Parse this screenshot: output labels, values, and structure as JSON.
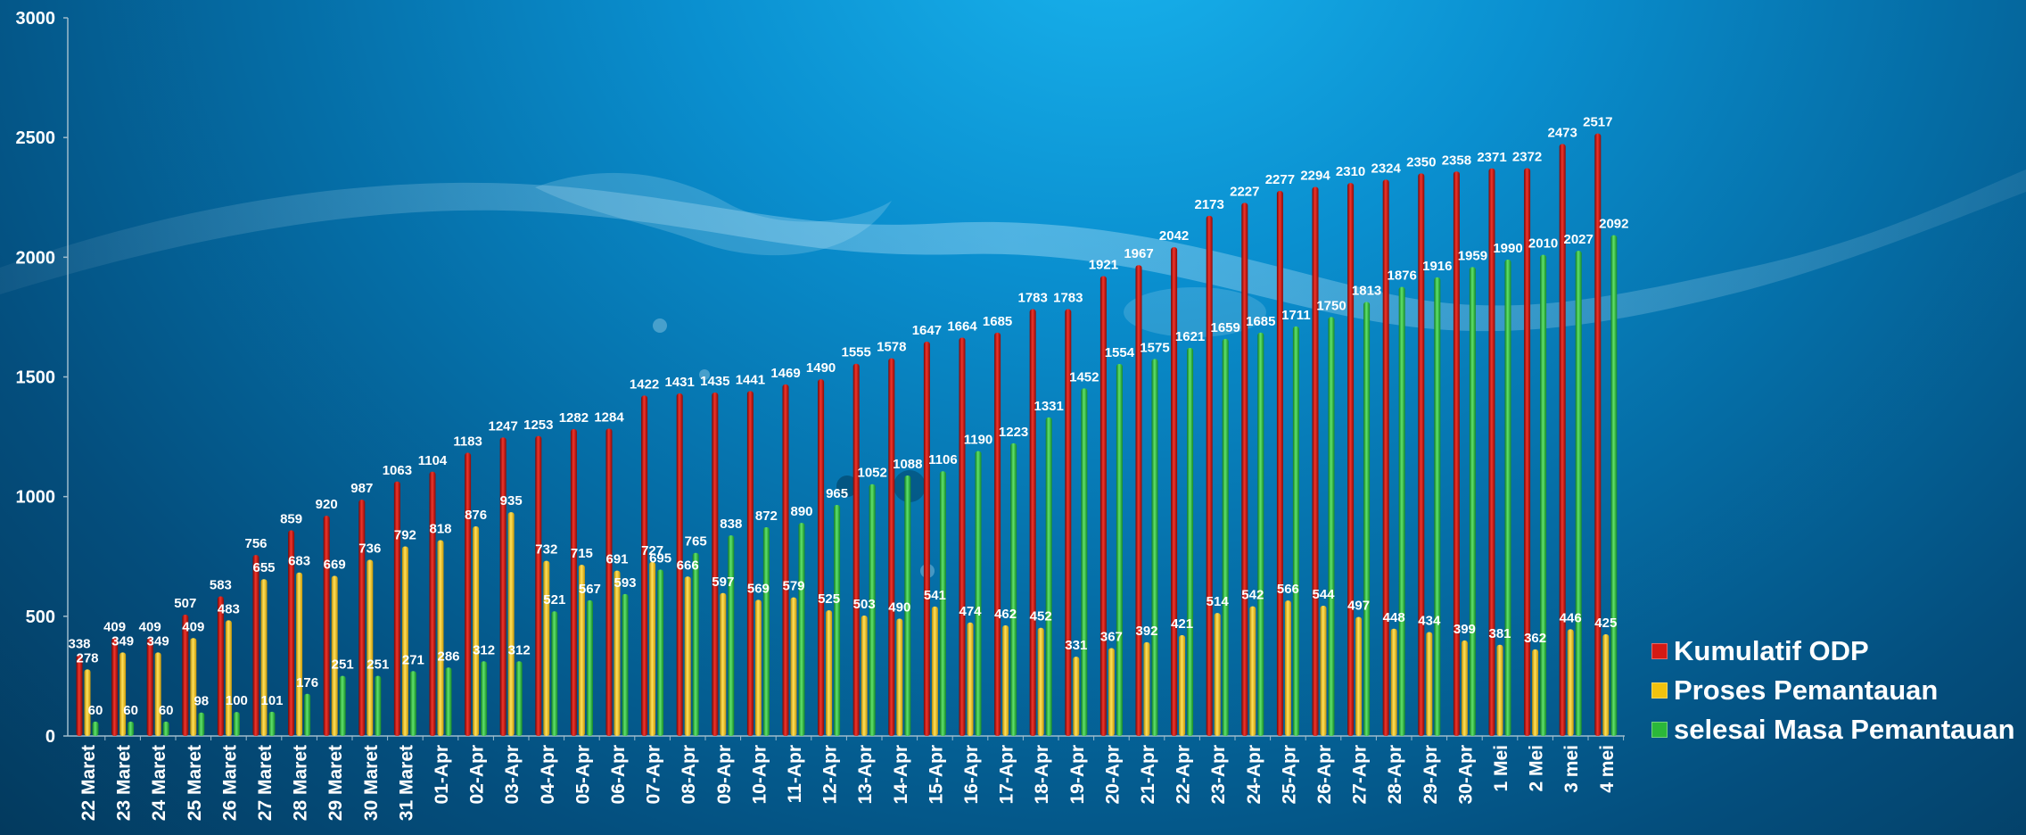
{
  "chart_data": {
    "type": "bar",
    "title": "",
    "xlabel": "",
    "ylabel": "",
    "ylim": [
      0,
      3000
    ],
    "yticks": [
      0,
      500,
      1000,
      1500,
      2000,
      2500,
      3000
    ],
    "grid": false,
    "legend_position": "right",
    "categories": [
      "22 Maret",
      "23 Maret",
      "24 Maret",
      "25 Maret",
      "26 Maret",
      "27 Maret",
      "28 Maret",
      "29 Maret",
      "30 Maret",
      "31 Maret",
      "01-Apr",
      "02-Apr",
      "03-Apr",
      "04-Apr",
      "05-Apr",
      "06-Apr",
      "07-Apr",
      "08-Apr",
      "09-Apr",
      "10-Apr",
      "11-Apr",
      "12-Apr",
      "13-Apr",
      "14-Apr",
      "15-Apr",
      "16-Apr",
      "17-Apr",
      "18-Apr",
      "19-Apr",
      "20-Apr",
      "21-Apr",
      "22-Apr",
      "23-Apr",
      "24-Apr",
      "25-Apr",
      "26-Apr",
      "27-Apr",
      "28-Apr",
      "29-Apr",
      "30-Apr",
      "1 Mei",
      "2 Mei",
      "3 mei",
      "4 mei"
    ],
    "series": [
      {
        "name": "Kumulatif ODP",
        "color": "#d41a14",
        "values": [
          338,
          409,
          409,
          507,
          583,
          756,
          859,
          920,
          987,
          1063,
          1104,
          1183,
          1247,
          1253,
          1282,
          1284,
          1422,
          1431,
          1435,
          1441,
          1469,
          1490,
          1555,
          1578,
          1647,
          1664,
          1685,
          1783,
          1783,
          1921,
          1967,
          2042,
          2173,
          2227,
          2277,
          2294,
          2310,
          2324,
          2350,
          2358,
          2371,
          2372,
          2473,
          2517
        ]
      },
      {
        "name": "Proses Pemantauan",
        "color": "#f2c20e",
        "values": [
          278,
          349,
          349,
          409,
          483,
          655,
          683,
          669,
          736,
          792,
          818,
          876,
          935,
          732,
          715,
          691,
          727,
          666,
          597,
          569,
          579,
          525,
          503,
          490,
          541,
          474,
          462,
          452,
          331,
          367,
          392,
          421,
          514,
          542,
          566,
          544,
          497,
          448,
          434,
          399,
          381,
          362,
          446,
          425
        ]
      },
      {
        "name": "selesai Masa Pemantauan",
        "color": "#2bb83a",
        "values": [
          60,
          60,
          60,
          98,
          100,
          101,
          176,
          251,
          251,
          271,
          286,
          312,
          312,
          521,
          567,
          593,
          695,
          765,
          838,
          872,
          890,
          965,
          1052,
          1088,
          1106,
          1190,
          1223,
          1331,
          1452,
          1554,
          1575,
          1621,
          1659,
          1685,
          1711,
          1750,
          1813,
          1876,
          1916,
          1959,
          1990,
          2010,
          2027,
          2092
        ]
      }
    ]
  },
  "axis_labels": [
    "3000",
    "2500",
    "2000",
    "1500",
    "1000",
    "500",
    "0"
  ]
}
